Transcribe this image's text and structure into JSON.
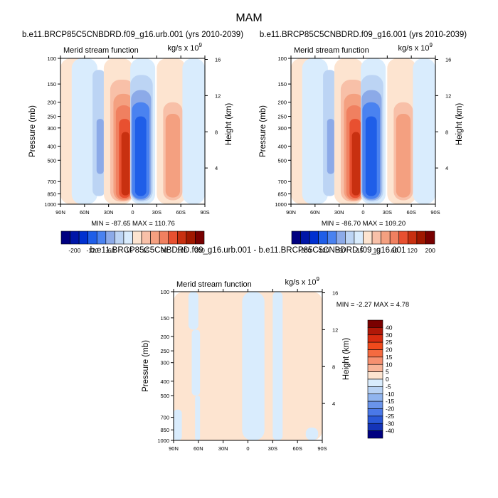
{
  "page": {
    "title": "MAM"
  },
  "colorbar_main": {
    "labels": [
      "-200",
      "-120",
      "-60",
      "-15",
      "15",
      "60",
      "120",
      "200"
    ],
    "colors": [
      "#000080",
      "#0016a8",
      "#0030d0",
      "#1f5ee8",
      "#4a82f0",
      "#8caae8",
      "#bcd4f4",
      "#d9ecfd",
      "#fde4d0",
      "#f8c0a8",
      "#f4a080",
      "#f08060",
      "#e85030",
      "#c83010",
      "#a01800",
      "#780000"
    ]
  },
  "colorbar_diff": {
    "labels": [
      "40",
      "30",
      "25",
      "20",
      "15",
      "10",
      "5",
      "0",
      "-5",
      "-10",
      "-15",
      "-20",
      "-25",
      "-30",
      "-40"
    ],
    "colors": [
      "#7a0000",
      "#b01808",
      "#d82c10",
      "#f04a1c",
      "#f46a40",
      "#f69070",
      "#f8b498",
      "#fde4d0",
      "#d9ecfd",
      "#b8d2f4",
      "#90b4ee",
      "#6a94ea",
      "#4a78e8",
      "#2a58d8",
      "#1434b8",
      "#000080"
    ]
  },
  "chart_data": [
    {
      "type": "contour",
      "title": "b.e11.BRCP85C5CNBDRD.f09_g16.urb.001 (yrs 2010-2039)",
      "subtitle_left": "Merid stream function",
      "subtitle_right": "kg/s x 10",
      "subtitle_exp": "9",
      "ylabel": "Pressure (mb)",
      "ylabel_right": "Height (km)",
      "x_ticks": [
        "90N",
        "60N",
        "30N",
        "0",
        "30S",
        "60S",
        "90S"
      ],
      "y_ticks": [
        "100",
        "150",
        "200",
        "250",
        "300",
        "400",
        "500",
        "700",
        "850",
        "1000"
      ],
      "y_right_ticks": [
        "16",
        "12",
        "8",
        "4"
      ],
      "min": -87.65,
      "max": 110.76,
      "minmax_text": "MIN = -87.65   MAX = 110.76",
      "cells": [
        {
          "lat0": 90,
          "lat1": 50,
          "p0": 100,
          "p1": 1000,
          "c": 8
        },
        {
          "lat0": 76,
          "lat1": 44,
          "p0": 100,
          "p1": 1000,
          "c": 7
        },
        {
          "lat0": 50,
          "lat1": 34,
          "p0": 120,
          "p1": 880,
          "c": 6
        },
        {
          "lat0": 45,
          "lat1": 36,
          "p0": 260,
          "p1": 620,
          "c": 5
        },
        {
          "lat0": 36,
          "lat1": 0,
          "p0": 100,
          "p1": 1000,
          "c": 8
        },
        {
          "lat0": 28,
          "lat1": -2,
          "p0": 140,
          "p1": 960,
          "c": 9
        },
        {
          "lat0": 24,
          "lat1": -1,
          "p0": 175,
          "p1": 945,
          "c": 10
        },
        {
          "lat0": 21,
          "lat1": 1,
          "p0": 210,
          "p1": 930,
          "c": 11
        },
        {
          "lat0": 17,
          "lat1": 3,
          "p0": 260,
          "p1": 905,
          "c": 12
        },
        {
          "lat0": 14,
          "lat1": 4,
          "p0": 320,
          "p1": 870,
          "c": 13
        },
        {
          "lat0": 3,
          "lat1": -28,
          "p0": 100,
          "p1": 1000,
          "c": 7
        },
        {
          "lat0": 3,
          "lat1": -25,
          "p0": 130,
          "p1": 960,
          "c": 6
        },
        {
          "lat0": 2,
          "lat1": -23,
          "p0": 165,
          "p1": 940,
          "c": 5
        },
        {
          "lat0": 1,
          "lat1": -21,
          "p0": 200,
          "p1": 920,
          "c": 4
        },
        {
          "lat0": -3,
          "lat1": -17,
          "p0": 250,
          "p1": 880,
          "c": 3
        },
        {
          "lat0": -30,
          "lat1": -66,
          "p0": 100,
          "p1": 1000,
          "c": 8
        },
        {
          "lat0": -38,
          "lat1": -62,
          "p0": 200,
          "p1": 940,
          "c": 9
        },
        {
          "lat0": -41,
          "lat1": -59,
          "p0": 240,
          "p1": 900,
          "c": 10
        },
        {
          "lat0": -62,
          "lat1": -90,
          "p0": 100,
          "p1": 1000,
          "c": 7
        }
      ]
    },
    {
      "type": "contour",
      "title": "b.e11.BRCP85C5CNBDRD.f09_g16.001 (yrs 2010-2039)",
      "subtitle_left": "Merid stream function",
      "subtitle_right": "kg/s x 10",
      "subtitle_exp": "9",
      "ylabel": "Pressure (mb)",
      "ylabel_right": "Height (km)",
      "x_ticks": [
        "90N",
        "60N",
        "30N",
        "0",
        "30S",
        "60S",
        "90S"
      ],
      "y_ticks": [
        "100",
        "150",
        "200",
        "250",
        "300",
        "400",
        "500",
        "700",
        "850",
        "1000"
      ],
      "y_right_ticks": [
        "16",
        "12",
        "8",
        "4"
      ],
      "min": -86.7,
      "max": 109.2,
      "minmax_text": "MIN = -86.70   MAX = 109.20",
      "cells": [
        {
          "lat0": 90,
          "lat1": 50,
          "p0": 100,
          "p1": 1000,
          "c": 8
        },
        {
          "lat0": 76,
          "lat1": 44,
          "p0": 100,
          "p1": 1000,
          "c": 7
        },
        {
          "lat0": 50,
          "lat1": 34,
          "p0": 120,
          "p1": 880,
          "c": 6
        },
        {
          "lat0": 45,
          "lat1": 36,
          "p0": 260,
          "p1": 620,
          "c": 5
        },
        {
          "lat0": 36,
          "lat1": 0,
          "p0": 100,
          "p1": 1000,
          "c": 8
        },
        {
          "lat0": 28,
          "lat1": -2,
          "p0": 140,
          "p1": 960,
          "c": 9
        },
        {
          "lat0": 24,
          "lat1": -1,
          "p0": 175,
          "p1": 945,
          "c": 10
        },
        {
          "lat0": 21,
          "lat1": 1,
          "p0": 210,
          "p1": 930,
          "c": 11
        },
        {
          "lat0": 17,
          "lat1": 3,
          "p0": 260,
          "p1": 905,
          "c": 12
        },
        {
          "lat0": 14,
          "lat1": 4,
          "p0": 320,
          "p1": 870,
          "c": 13
        },
        {
          "lat0": 3,
          "lat1": -28,
          "p0": 100,
          "p1": 1000,
          "c": 7
        },
        {
          "lat0": 3,
          "lat1": -25,
          "p0": 130,
          "p1": 960,
          "c": 6
        },
        {
          "lat0": 2,
          "lat1": -23,
          "p0": 165,
          "p1": 940,
          "c": 5
        },
        {
          "lat0": 1,
          "lat1": -21,
          "p0": 200,
          "p1": 920,
          "c": 4
        },
        {
          "lat0": -3,
          "lat1": -17,
          "p0": 250,
          "p1": 880,
          "c": 3
        },
        {
          "lat0": -30,
          "lat1": -66,
          "p0": 100,
          "p1": 1000,
          "c": 8
        },
        {
          "lat0": -38,
          "lat1": -62,
          "p0": 200,
          "p1": 940,
          "c": 9
        },
        {
          "lat0": -41,
          "lat1": -59,
          "p0": 240,
          "p1": 900,
          "c": 10
        },
        {
          "lat0": -62,
          "lat1": -90,
          "p0": 100,
          "p1": 1000,
          "c": 7
        }
      ]
    },
    {
      "type": "contour",
      "title": "b.e11.BRCP85C5CNBDRD.f09_g16.urb.001 - b.e11.BRCP85C5CNBDRD.f09_g16.001",
      "subtitle_left": "Merid stream function",
      "subtitle_right": "kg/s x 10",
      "subtitle_exp": "9",
      "ylabel": "Pressure (mb)",
      "ylabel_right": "Height (km)",
      "x_ticks": [
        "90N",
        "60N",
        "30N",
        "0",
        "30S",
        "60S",
        "90S"
      ],
      "y_ticks": [
        "100",
        "150",
        "200",
        "250",
        "300",
        "400",
        "500",
        "700",
        "850",
        "1000"
      ],
      "y_right_ticks": [
        "16",
        "12",
        "8",
        "4"
      ],
      "min": -2.27,
      "max": 4.78,
      "minmax_text": "MIN =  -2.27   MAX =   4.78",
      "cells": [
        {
          "lat0": 90,
          "lat1": -90,
          "p0": 100,
          "p1": 1000,
          "c": 7
        },
        {
          "lat0": 72,
          "lat1": 60,
          "p0": 100,
          "p1": 180,
          "c": 8
        },
        {
          "lat0": 68,
          "lat1": 58,
          "p0": 180,
          "p1": 500,
          "c": 8
        },
        {
          "lat0": 64,
          "lat1": 58,
          "p0": 500,
          "p1": 1000,
          "c": 8
        },
        {
          "lat0": 90,
          "lat1": 80,
          "p0": 620,
          "p1": 1000,
          "c": 8
        },
        {
          "lat0": 7,
          "lat1": -20,
          "p0": 100,
          "p1": 1000,
          "c": 8
        },
        {
          "lat0": -30,
          "lat1": -42,
          "p0": 100,
          "p1": 1000,
          "c": 8
        },
        {
          "lat0": -70,
          "lat1": -85,
          "p0": 820,
          "p1": 1000,
          "c": 8
        }
      ]
    }
  ]
}
